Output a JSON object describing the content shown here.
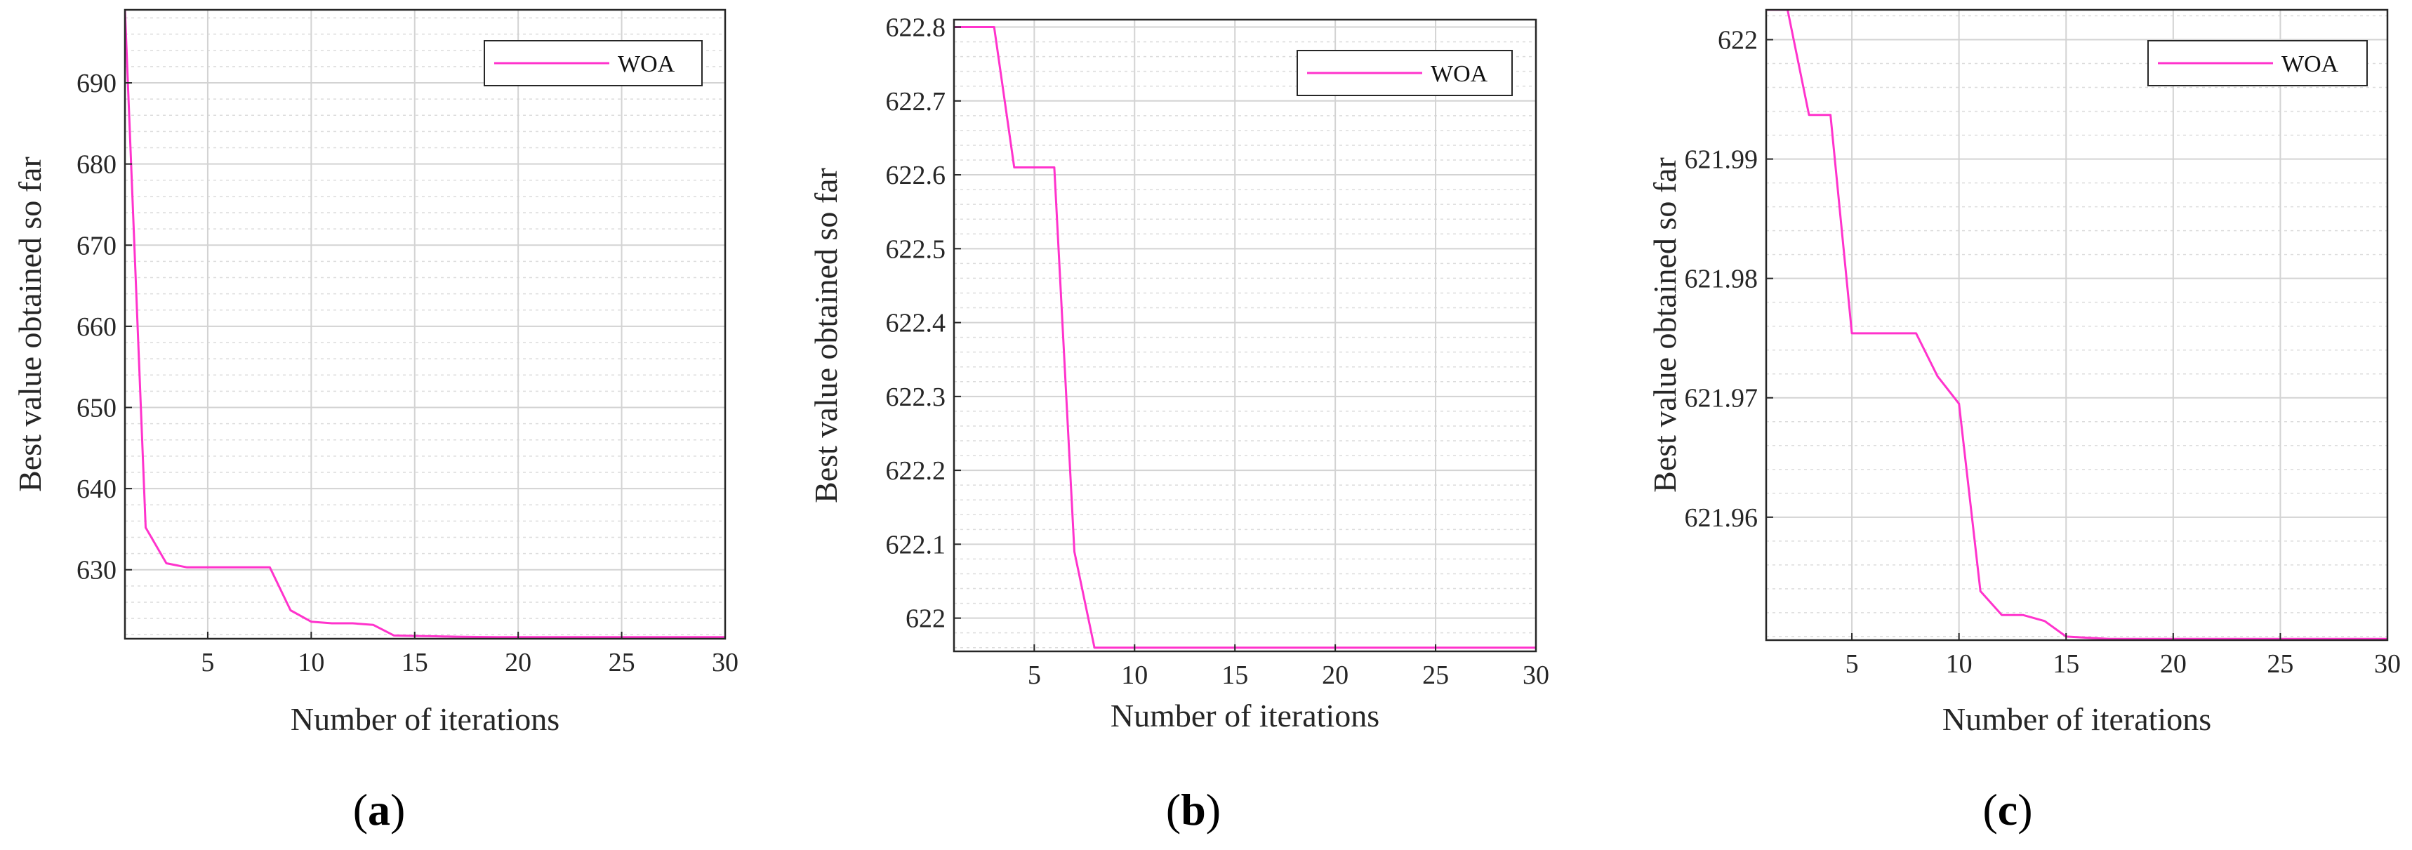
{
  "figure": {
    "captions": [
      "a",
      "b",
      "c"
    ]
  },
  "chart_data": [
    {
      "type": "line",
      "panel": "a",
      "xlabel": "Number of iterations",
      "ylabel": "Best value obtained so far",
      "xlim": [
        1,
        30
      ],
      "ylim": [
        621.5,
        699
      ],
      "xticks": [
        5,
        10,
        15,
        20,
        25,
        30
      ],
      "yticks": [
        630,
        640,
        650,
        660,
        670,
        680,
        690
      ],
      "ytick_labels": [
        "630",
        "640",
        "650",
        "660",
        "670",
        "680",
        "690"
      ],
      "minor_y_step": 2,
      "grid": true,
      "legend": "top-right",
      "series": [
        {
          "name": "WOA",
          "color": "#ff33cc",
          "x": [
            1,
            2,
            3,
            4,
            5,
            6,
            7,
            8,
            9,
            10,
            11,
            12,
            13,
            14,
            15,
            16,
            17,
            18,
            19,
            20,
            21,
            22,
            23,
            24,
            25,
            26,
            27,
            28,
            29,
            30
          ],
          "y": [
            699,
            635.2,
            630.8,
            630.3,
            630.3,
            630.3,
            630.3,
            630.3,
            625,
            623.6,
            623.4,
            623.4,
            623.2,
            621.9,
            621.85,
            621.8,
            621.75,
            621.72,
            621.7,
            621.7,
            621.7,
            621.7,
            621.7,
            621.7,
            621.7,
            621.7,
            621.7,
            621.7,
            621.7,
            621.7
          ]
        }
      ]
    },
    {
      "type": "line",
      "panel": "b",
      "xlabel": "Number of iterations",
      "ylabel": "Best value obtained so far",
      "xlim": [
        1,
        30
      ],
      "ylim": [
        621.955,
        622.81
      ],
      "xticks": [
        5,
        10,
        15,
        20,
        25,
        30
      ],
      "yticks": [
        622,
        622.1,
        622.2,
        622.3,
        622.4,
        622.5,
        622.6,
        622.7,
        622.8
      ],
      "ytick_labels": [
        "622",
        "622.1",
        "622.2",
        "622.3",
        "622.4",
        "622.5",
        "622.6",
        "622.7",
        "622.8"
      ],
      "minor_y_step": 0.02,
      "grid": true,
      "legend": "top-right",
      "series": [
        {
          "name": "WOA",
          "color": "#ff33cc",
          "x": [
            1,
            2,
            3,
            4,
            5,
            6,
            7,
            8,
            9,
            10,
            11,
            12,
            13,
            14,
            15,
            16,
            17,
            18,
            19,
            20,
            21,
            22,
            23,
            24,
            25,
            26,
            27,
            28,
            29,
            30
          ],
          "y": [
            622.8,
            622.8,
            622.8,
            622.61,
            622.61,
            622.61,
            622.09,
            621.96,
            621.96,
            621.96,
            621.96,
            621.96,
            621.96,
            621.96,
            621.96,
            621.96,
            621.96,
            621.96,
            621.96,
            621.96,
            621.96,
            621.96,
            621.96,
            621.96,
            621.96,
            621.96,
            621.96,
            621.96,
            621.96,
            621.96
          ]
        }
      ]
    },
    {
      "type": "line",
      "panel": "c",
      "xlabel": "Number of iterations",
      "ylabel": "Best value obtained so far",
      "xlim": [
        1,
        30
      ],
      "ylim": [
        621.9497,
        622.0025
      ],
      "xticks": [
        5,
        10,
        15,
        20,
        25,
        30
      ],
      "yticks": [
        621.96,
        621.97,
        621.98,
        621.99,
        622
      ],
      "ytick_labels": [
        "621.96",
        "621.97",
        "621.98",
        "621.99",
        "622"
      ],
      "minor_y_step": 0.002,
      "grid": true,
      "legend": "top-right",
      "series": [
        {
          "name": "WOA",
          "color": "#ff33cc",
          "x": [
            1,
            2,
            3,
            4,
            5,
            6,
            7,
            8,
            9,
            10,
            11,
            12,
            13,
            14,
            15,
            16,
            17,
            18,
            19,
            20,
            21,
            22,
            23,
            24,
            25,
            26,
            27,
            28,
            29,
            30
          ],
          "y": [
            622.0025,
            622.0025,
            621.9937,
            621.9937,
            621.9754,
            621.9754,
            621.9754,
            621.9754,
            621.9718,
            621.9695,
            621.9538,
            621.9518,
            621.9518,
            621.9513,
            621.95,
            621.9499,
            621.9498,
            621.9498,
            621.9498,
            621.9498,
            621.9498,
            621.9498,
            621.9498,
            621.9498,
            621.9498,
            621.9498,
            621.9498,
            621.9498,
            621.9498,
            621.9498
          ]
        }
      ]
    }
  ]
}
